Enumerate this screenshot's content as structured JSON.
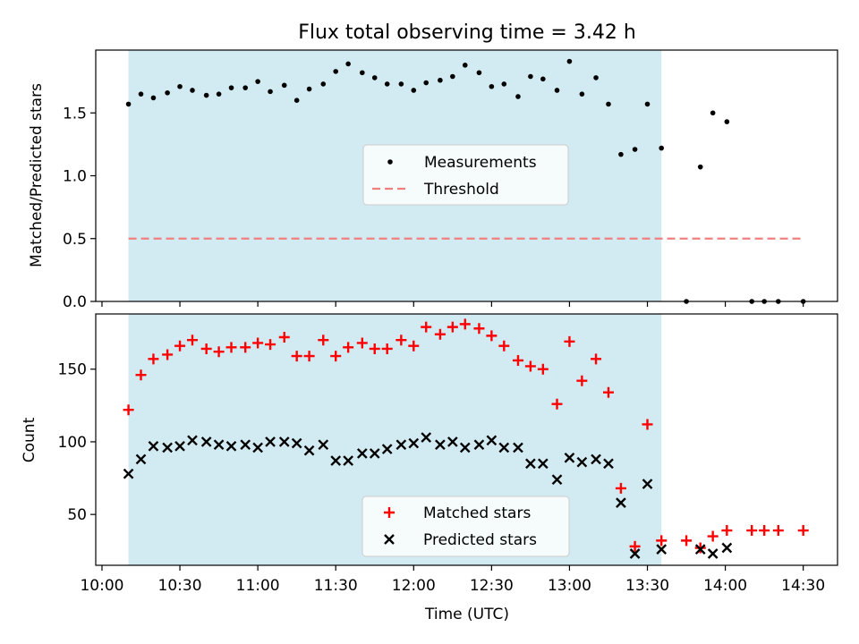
{
  "figure": {
    "title": "Flux total observing time = 3.42 h",
    "xlabel": "Time (UTC)",
    "x_ticks": [
      {
        "label": "10:00",
        "h": 10.0
      },
      {
        "label": "10:30",
        "h": 10.5
      },
      {
        "label": "11:00",
        "h": 11.0
      },
      {
        "label": "11:30",
        "h": 11.5
      },
      {
        "label": "12:00",
        "h": 12.0
      },
      {
        "label": "12:30",
        "h": 12.5
      },
      {
        "label": "13:00",
        "h": 13.0
      },
      {
        "label": "13:30",
        "h": 13.5
      },
      {
        "label": "14:00",
        "h": 14.0
      },
      {
        "label": "14:30",
        "h": 14.5
      }
    ],
    "xlim": [
      9.96,
      14.72
    ],
    "shaded_span": [
      10.17,
      13.59
    ],
    "colors": {
      "shade": "#add8e6",
      "measure": "#000000",
      "threshold": "#f08080",
      "matched": "#ff0000",
      "predicted": "#000000"
    }
  },
  "chart_data": [
    {
      "type": "scatter",
      "panel": "top",
      "ylabel": "Matched/Predicted stars",
      "ylim": [
        0,
        2.0
      ],
      "y_ticks": [
        {
          "label": "0.0",
          "v": 0.0
        },
        {
          "label": "0.5",
          "v": 0.5
        },
        {
          "label": "1.0",
          "v": 1.0
        },
        {
          "label": "1.5",
          "v": 1.5
        }
      ],
      "threshold": {
        "value": 0.5,
        "x_range": [
          10.17,
          14.5
        ]
      },
      "legend": {
        "location": "center",
        "entries": [
          "Measurements",
          "Threshold"
        ]
      },
      "series": [
        {
          "name": "Measurements",
          "x": [
            10.17,
            10.25,
            10.33,
            10.42,
            10.5,
            10.58,
            10.67,
            10.75,
            10.83,
            10.92,
            11.0,
            11.08,
            11.17,
            11.25,
            11.33,
            11.42,
            11.5,
            11.58,
            11.67,
            11.75,
            11.83,
            11.92,
            12.0,
            12.08,
            12.17,
            12.25,
            12.33,
            12.42,
            12.5,
            12.58,
            12.67,
            12.75,
            12.83,
            12.92,
            13.0,
            13.08,
            13.17,
            13.25,
            13.33,
            13.42,
            13.5,
            13.59,
            13.75,
            13.84,
            13.92,
            14.01,
            14.17,
            14.25,
            14.34,
            14.5
          ],
          "y": [
            1.57,
            1.65,
            1.62,
            1.66,
            1.71,
            1.68,
            1.64,
            1.65,
            1.7,
            1.7,
            1.75,
            1.67,
            1.72,
            1.6,
            1.69,
            1.73,
            1.83,
            1.89,
            1.82,
            1.78,
            1.73,
            1.73,
            1.68,
            1.74,
            1.76,
            1.79,
            1.88,
            1.82,
            1.71,
            1.73,
            1.63,
            1.79,
            1.77,
            1.68,
            1.91,
            1.65,
            1.78,
            1.57,
            1.17,
            1.21,
            1.57,
            1.22,
            0.0,
            1.07,
            1.5,
            1.43,
            0.0,
            0.0,
            0.0,
            0.0
          ]
        }
      ]
    },
    {
      "type": "scatter",
      "panel": "bottom",
      "ylabel": "Count",
      "ylim": [
        15,
        188
      ],
      "y_ticks": [
        {
          "label": "50",
          "v": 50
        },
        {
          "label": "100",
          "v": 100
        },
        {
          "label": "150",
          "v": 150
        }
      ],
      "legend": {
        "location": "bottom-center",
        "entries": [
          "Matched stars",
          "Predicted stars"
        ]
      },
      "series": [
        {
          "name": "Matched stars",
          "marker": "plus",
          "x": [
            10.17,
            10.25,
            10.33,
            10.42,
            10.5,
            10.58,
            10.67,
            10.75,
            10.83,
            10.92,
            11.0,
            11.08,
            11.17,
            11.25,
            11.33,
            11.42,
            11.5,
            11.58,
            11.67,
            11.75,
            11.83,
            11.92,
            12.0,
            12.08,
            12.17,
            12.25,
            12.33,
            12.42,
            12.5,
            12.58,
            12.67,
            12.75,
            12.83,
            12.92,
            13.0,
            13.08,
            13.17,
            13.25,
            13.33,
            13.42,
            13.5,
            13.59,
            13.75,
            13.84,
            13.92,
            14.01,
            14.17,
            14.25,
            14.34,
            14.5
          ],
          "y": [
            122,
            146,
            157,
            160,
            166,
            170,
            164,
            162,
            165,
            165,
            168,
            167,
            172,
            159,
            159,
            170,
            159,
            165,
            168,
            164,
            164,
            170,
            166,
            179,
            174,
            179,
            181,
            178,
            173,
            166,
            156,
            152,
            150,
            126,
            169,
            142,
            157,
            134,
            68,
            28,
            112,
            32,
            32,
            27,
            35,
            39,
            39,
            39,
            39,
            39
          ]
        },
        {
          "name": "Predicted stars",
          "marker": "x",
          "x": [
            10.17,
            10.25,
            10.33,
            10.42,
            10.5,
            10.58,
            10.67,
            10.75,
            10.83,
            10.92,
            11.0,
            11.08,
            11.17,
            11.25,
            11.33,
            11.42,
            11.5,
            11.58,
            11.67,
            11.75,
            11.83,
            11.92,
            12.0,
            12.08,
            12.17,
            12.25,
            12.33,
            12.42,
            12.5,
            12.58,
            12.67,
            12.75,
            12.83,
            12.92,
            13.0,
            13.08,
            13.17,
            13.25,
            13.33,
            13.42,
            13.5,
            13.59,
            13.84,
            13.92,
            14.01
          ],
          "y": [
            78,
            88,
            97,
            96,
            97,
            101,
            100,
            98,
            97,
            98,
            96,
            100,
            100,
            99,
            94,
            98,
            87,
            87,
            92,
            92,
            95,
            98,
            99,
            103,
            98,
            100,
            96,
            98,
            101,
            96,
            96,
            85,
            85,
            74,
            89,
            86,
            88,
            85,
            58,
            23,
            71,
            26,
            26,
            23,
            27
          ]
        }
      ]
    }
  ]
}
